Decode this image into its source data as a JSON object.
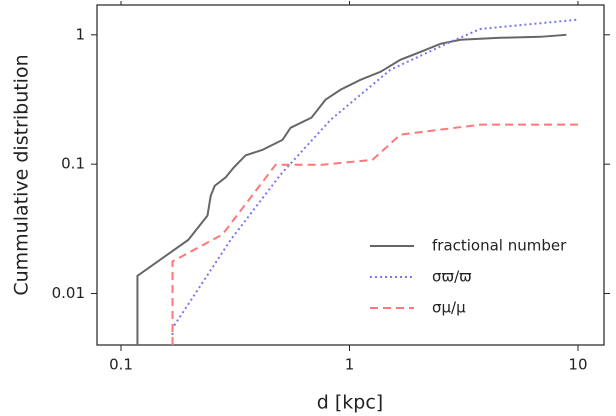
{
  "chart_data": {
    "type": "line",
    "x_label": "d [kpc]",
    "y_label": "Cummulative distribution",
    "xscale": "log",
    "yscale": "log",
    "xlim": [
      0.0785,
      13
    ],
    "ylim": [
      0.004,
      1.7
    ],
    "xticks": [
      0.1,
      1,
      10
    ],
    "yticks": [
      0.01,
      0.1,
      1
    ],
    "legend": "lower right",
    "series": [
      {
        "name": "fractional number",
        "color": "#666666",
        "linestyle": "solid",
        "x": [
          0.118,
          0.118,
          0.197,
          0.239,
          0.247,
          0.257,
          0.287,
          0.311,
          0.351,
          0.416,
          0.509,
          0.552,
          0.682,
          0.785,
          0.913,
          1.117,
          1.368,
          1.67,
          2.05,
          2.5,
          3.06,
          4.57,
          6.85,
          8.9
        ],
        "values": [
          0.004,
          0.0137,
          0.026,
          0.04,
          0.057,
          0.068,
          0.079,
          0.094,
          0.117,
          0.129,
          0.154,
          0.191,
          0.229,
          0.315,
          0.376,
          0.449,
          0.518,
          0.641,
          0.739,
          0.852,
          0.915,
          0.948,
          0.965,
          1.0
        ]
      },
      {
        "name": "σϖ/ϖ",
        "color": "#7777ee",
        "linestyle": "dotted",
        "x": [
          0.168,
          0.168,
          0.302,
          0.499,
          0.826,
          1.51,
          2.77,
          3.74,
          10
        ],
        "values": [
          0.004,
          0.0054,
          0.026,
          0.083,
          0.22,
          0.537,
          0.883,
          1.11,
          1.31
        ]
      },
      {
        "name": "σμ/μ",
        "color": "#ff7777",
        "linestyle": "dashed",
        "x": [
          0.168,
          0.168,
          0.278,
          0.475,
          0.762,
          1.26,
          1.67,
          3.74,
          10
        ],
        "values": [
          0.004,
          0.0177,
          0.0286,
          0.099,
          0.099,
          0.108,
          0.169,
          0.202,
          0.202
        ]
      }
    ]
  }
}
